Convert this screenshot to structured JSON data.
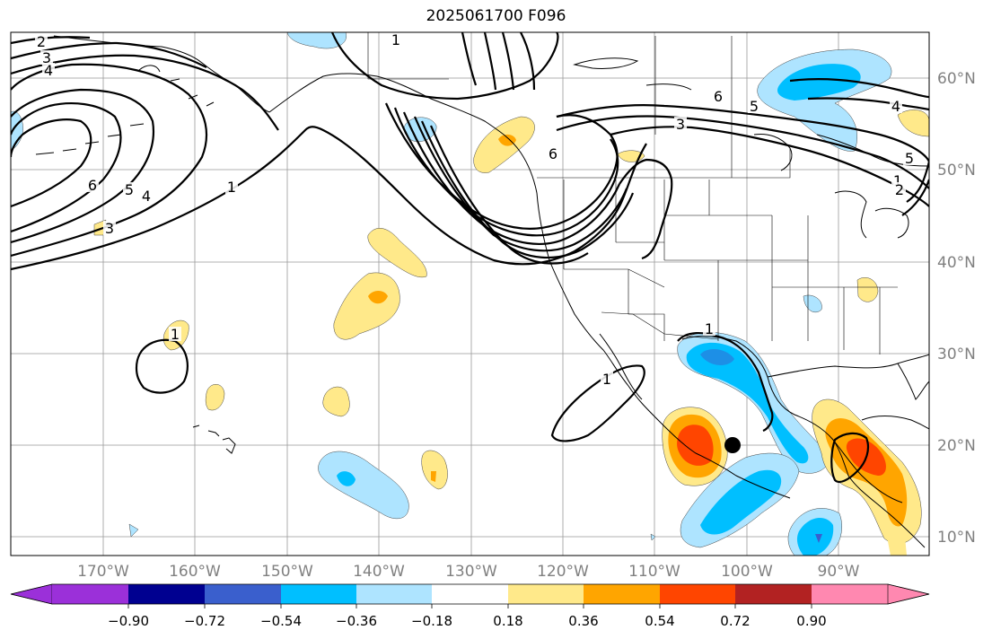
{
  "title": "2025061700 F096",
  "lon_ticks": [
    "170°W",
    "160°W",
    "150°W",
    "140°W",
    "130°W",
    "120°W",
    "110°W",
    "100°W",
    "90°W"
  ],
  "lat_ticks": [
    "60°N",
    "50°N",
    "40°N",
    "30°N",
    "20°N",
    "10°N"
  ],
  "colorbar": {
    "ticks": [
      "−0.90",
      "−0.72",
      "−0.54",
      "−0.36",
      "−0.18",
      "0.18",
      "0.36",
      "0.54",
      "0.72",
      "0.90"
    ],
    "colors": [
      "#9b30d9",
      "#000090",
      "#3a5fcd",
      "#00bfff",
      "#aee4ff",
      "#ffffff",
      "#ffe98a",
      "#ffa500",
      "#ff4500",
      "#b22222",
      "#ff88b0"
    ]
  },
  "contour_labels": [
    "2",
    "3",
    "4",
    "6",
    "5",
    "4",
    "1",
    "3",
    "1",
    "1",
    "1",
    "6",
    "3",
    "5",
    "6",
    "1",
    "1",
    "4",
    "5",
    "2"
  ],
  "marker": "storm-center-dot"
}
